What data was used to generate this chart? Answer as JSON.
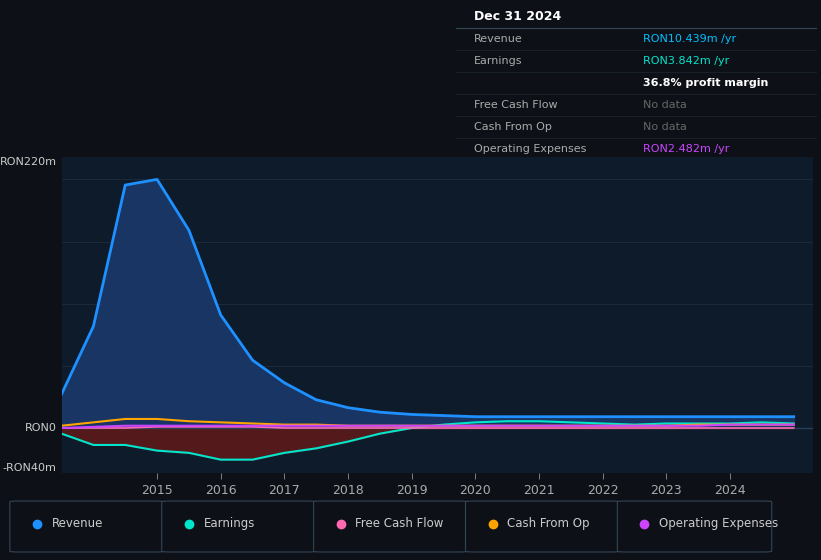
{
  "bg_color": "#0d1117",
  "panel_bg": "#0d1b2a",
  "grid_color": "#1e2d3d",
  "zero_line_color": "#2a3f55",
  "title": "Dec 31 2024",
  "table": {
    "Revenue": {
      "value": "RON10.439m /yr",
      "color": "#00bfff"
    },
    "Earnings": {
      "value": "RON3.842m /yr",
      "color": "#00e5cc"
    },
    "profit_margin": "36.8% profit margin",
    "Free Cash Flow": {
      "value": "No data",
      "color": "#666666"
    },
    "Cash From Op": {
      "value": "No data",
      "color": "#666666"
    },
    "Operating Expenses": {
      "value": "RON2.482m /yr",
      "color": "#cc44ff"
    }
  },
  "ylim": [
    -40,
    240
  ],
  "ytick_labels": [
    "RON0",
    "RON220m"
  ],
  "y_neg_label": "-RON40m",
  "xlim_start": 2013.5,
  "xlim_end": 2025.3,
  "xticks": [
    2015,
    2016,
    2017,
    2018,
    2019,
    2020,
    2021,
    2022,
    2023,
    2024
  ],
  "revenue_color": "#1e90ff",
  "revenue_fill": "#1a3a6e",
  "earnings_color": "#00e5cc",
  "fcf_color": "#ff69b4",
  "cashfromop_color": "#ffa500",
  "opex_color": "#cc44ff",
  "neg_fill_color": "#5c1a1a",
  "legend_items": [
    {
      "label": "Revenue",
      "color": "#1e90ff"
    },
    {
      "label": "Earnings",
      "color": "#00e5cc"
    },
    {
      "label": "Free Cash Flow",
      "color": "#ff69b4"
    },
    {
      "label": "Cash From Op",
      "color": "#ffa500"
    },
    {
      "label": "Operating Expenses",
      "color": "#cc44ff"
    }
  ],
  "years": [
    2013.5,
    2014.0,
    2014.5,
    2015.0,
    2015.5,
    2016.0,
    2016.5,
    2017.0,
    2017.5,
    2018.0,
    2018.5,
    2019.0,
    2019.5,
    2020.0,
    2020.5,
    2021.0,
    2021.5,
    2022.0,
    2022.5,
    2023.0,
    2023.5,
    2024.0,
    2024.5,
    2025.0
  ],
  "revenue": [
    30,
    90,
    215,
    220,
    175,
    100,
    60,
    40,
    25,
    18,
    14,
    12,
    11,
    10,
    10,
    10,
    10,
    10,
    10,
    10,
    10,
    10,
    10,
    10
  ],
  "earnings": [
    -5,
    -15,
    -15,
    -20,
    -22,
    -28,
    -28,
    -22,
    -18,
    -12,
    -5,
    0,
    3,
    5,
    6,
    6,
    5,
    4,
    3,
    4,
    4,
    4,
    5,
    4
  ],
  "fcf": [
    0,
    0,
    0,
    1,
    1,
    1,
    1,
    0,
    0,
    0,
    0,
    0,
    0,
    0,
    0,
    0,
    0,
    0,
    0,
    0,
    0,
    0,
    0,
    0
  ],
  "cashfromop": [
    2,
    5,
    8,
    8,
    6,
    5,
    4,
    3,
    3,
    2,
    2,
    2,
    2,
    2,
    2,
    2,
    2,
    2,
    2,
    2,
    3,
    3,
    3,
    3
  ],
  "opex": [
    0,
    1,
    2,
    2,
    2,
    2,
    2,
    2,
    2,
    2,
    2,
    2,
    2,
    2,
    2,
    2,
    2,
    2,
    2,
    2,
    2,
    3,
    3,
    3
  ]
}
